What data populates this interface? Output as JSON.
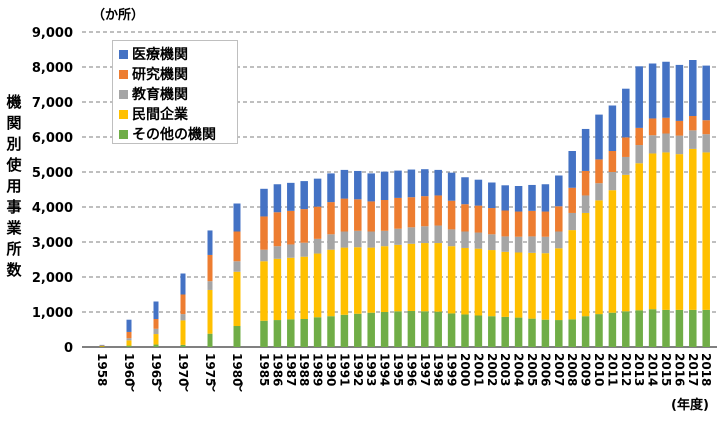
{
  "chart_data": {
    "type": "bar",
    "stacked": true,
    "unit_label": "（か所）",
    "ylabel": "機関別使用事業所数",
    "xunit_label": "(年度)",
    "ylim": [
      0,
      9000
    ],
    "yticks": [
      "0",
      "1,000",
      "2,000",
      "3,000",
      "4,000",
      "5,000",
      "6,000",
      "7,000",
      "8,000",
      "9,000"
    ],
    "ytick_values": [
      0,
      1000,
      2000,
      3000,
      4000,
      5000,
      6000,
      7000,
      8000,
      9000
    ],
    "grid": true,
    "legend_position": "top-left",
    "categories": [
      "1958",
      "1960",
      "1965",
      "1970",
      "1975",
      "1980",
      "1985",
      "1986",
      "1987",
      "1988",
      "1989",
      "1990",
      "1991",
      "1992",
      "1993",
      "1994",
      "1995",
      "1996",
      "1997",
      "1998",
      "1999",
      "2000",
      "2001",
      "2002",
      "2003",
      "2004",
      "2005",
      "2006",
      "2007",
      "2008",
      "2009",
      "2010",
      "2011",
      "2012",
      "2013",
      "2014",
      "2015",
      "2016",
      "2017",
      "2018"
    ],
    "gap_tick_label": "～",
    "series": [
      {
        "name": "その他の機関",
        "color": "#70ad47",
        "values": [
          10,
          40,
          70,
          60,
          380,
          600,
          750,
          770,
          790,
          800,
          850,
          880,
          920,
          950,
          980,
          1000,
          1020,
          1030,
          1020,
          1010,
          960,
          930,
          900,
          880,
          860,
          840,
          810,
          780,
          770,
          790,
          880,
          940,
          980,
          1020,
          1050,
          1080,
          1060,
          1060,
          1060,
          1060
        ]
      },
      {
        "name": "民間企業",
        "color": "#ffc000",
        "values": [
          20,
          150,
          300,
          700,
          1250,
          1550,
          1700,
          1750,
          1760,
          1780,
          1820,
          1900,
          1920,
          1900,
          1860,
          1880,
          1900,
          1920,
          1950,
          1960,
          1920,
          1900,
          1910,
          1890,
          1860,
          1860,
          1880,
          1900,
          2050,
          2550,
          2950,
          3250,
          3500,
          3900,
          4200,
          4450,
          4500,
          4450,
          4600,
          4500
        ]
      },
      {
        "name": "教育機関",
        "color": "#a5a5a5",
        "values": [
          5,
          60,
          150,
          180,
          250,
          300,
          330,
          360,
          380,
          400,
          420,
          440,
          460,
          470,
          460,
          440,
          460,
          470,
          480,
          500,
          480,
          470,
          460,
          450,
          440,
          450,
          470,
          470,
          480,
          490,
          500,
          490,
          520,
          510,
          520,
          520,
          540,
          530,
          530,
          520
        ]
      },
      {
        "name": "研究機関",
        "color": "#ed7d31",
        "values": [
          10,
          180,
          280,
          560,
          750,
          850,
          950,
          970,
          960,
          960,
          920,
          920,
          940,
          900,
          860,
          880,
          880,
          860,
          860,
          860,
          820,
          780,
          770,
          750,
          740,
          720,
          730,
          720,
          720,
          720,
          700,
          680,
          600,
          560,
          490,
          480,
          450,
          420,
          410,
          400
        ]
      },
      {
        "name": "医療機関",
        "color": "#4472c4",
        "values": [
          15,
          350,
          500,
          600,
          700,
          800,
          790,
          800,
          800,
          800,
          800,
          820,
          820,
          810,
          800,
          810,
          780,
          790,
          770,
          730,
          800,
          770,
          740,
          730,
          720,
          730,
          740,
          780,
          880,
          1050,
          1200,
          1280,
          1300,
          1390,
          1760,
          1570,
          1600,
          1600,
          1600,
          1560
        ]
      }
    ]
  }
}
